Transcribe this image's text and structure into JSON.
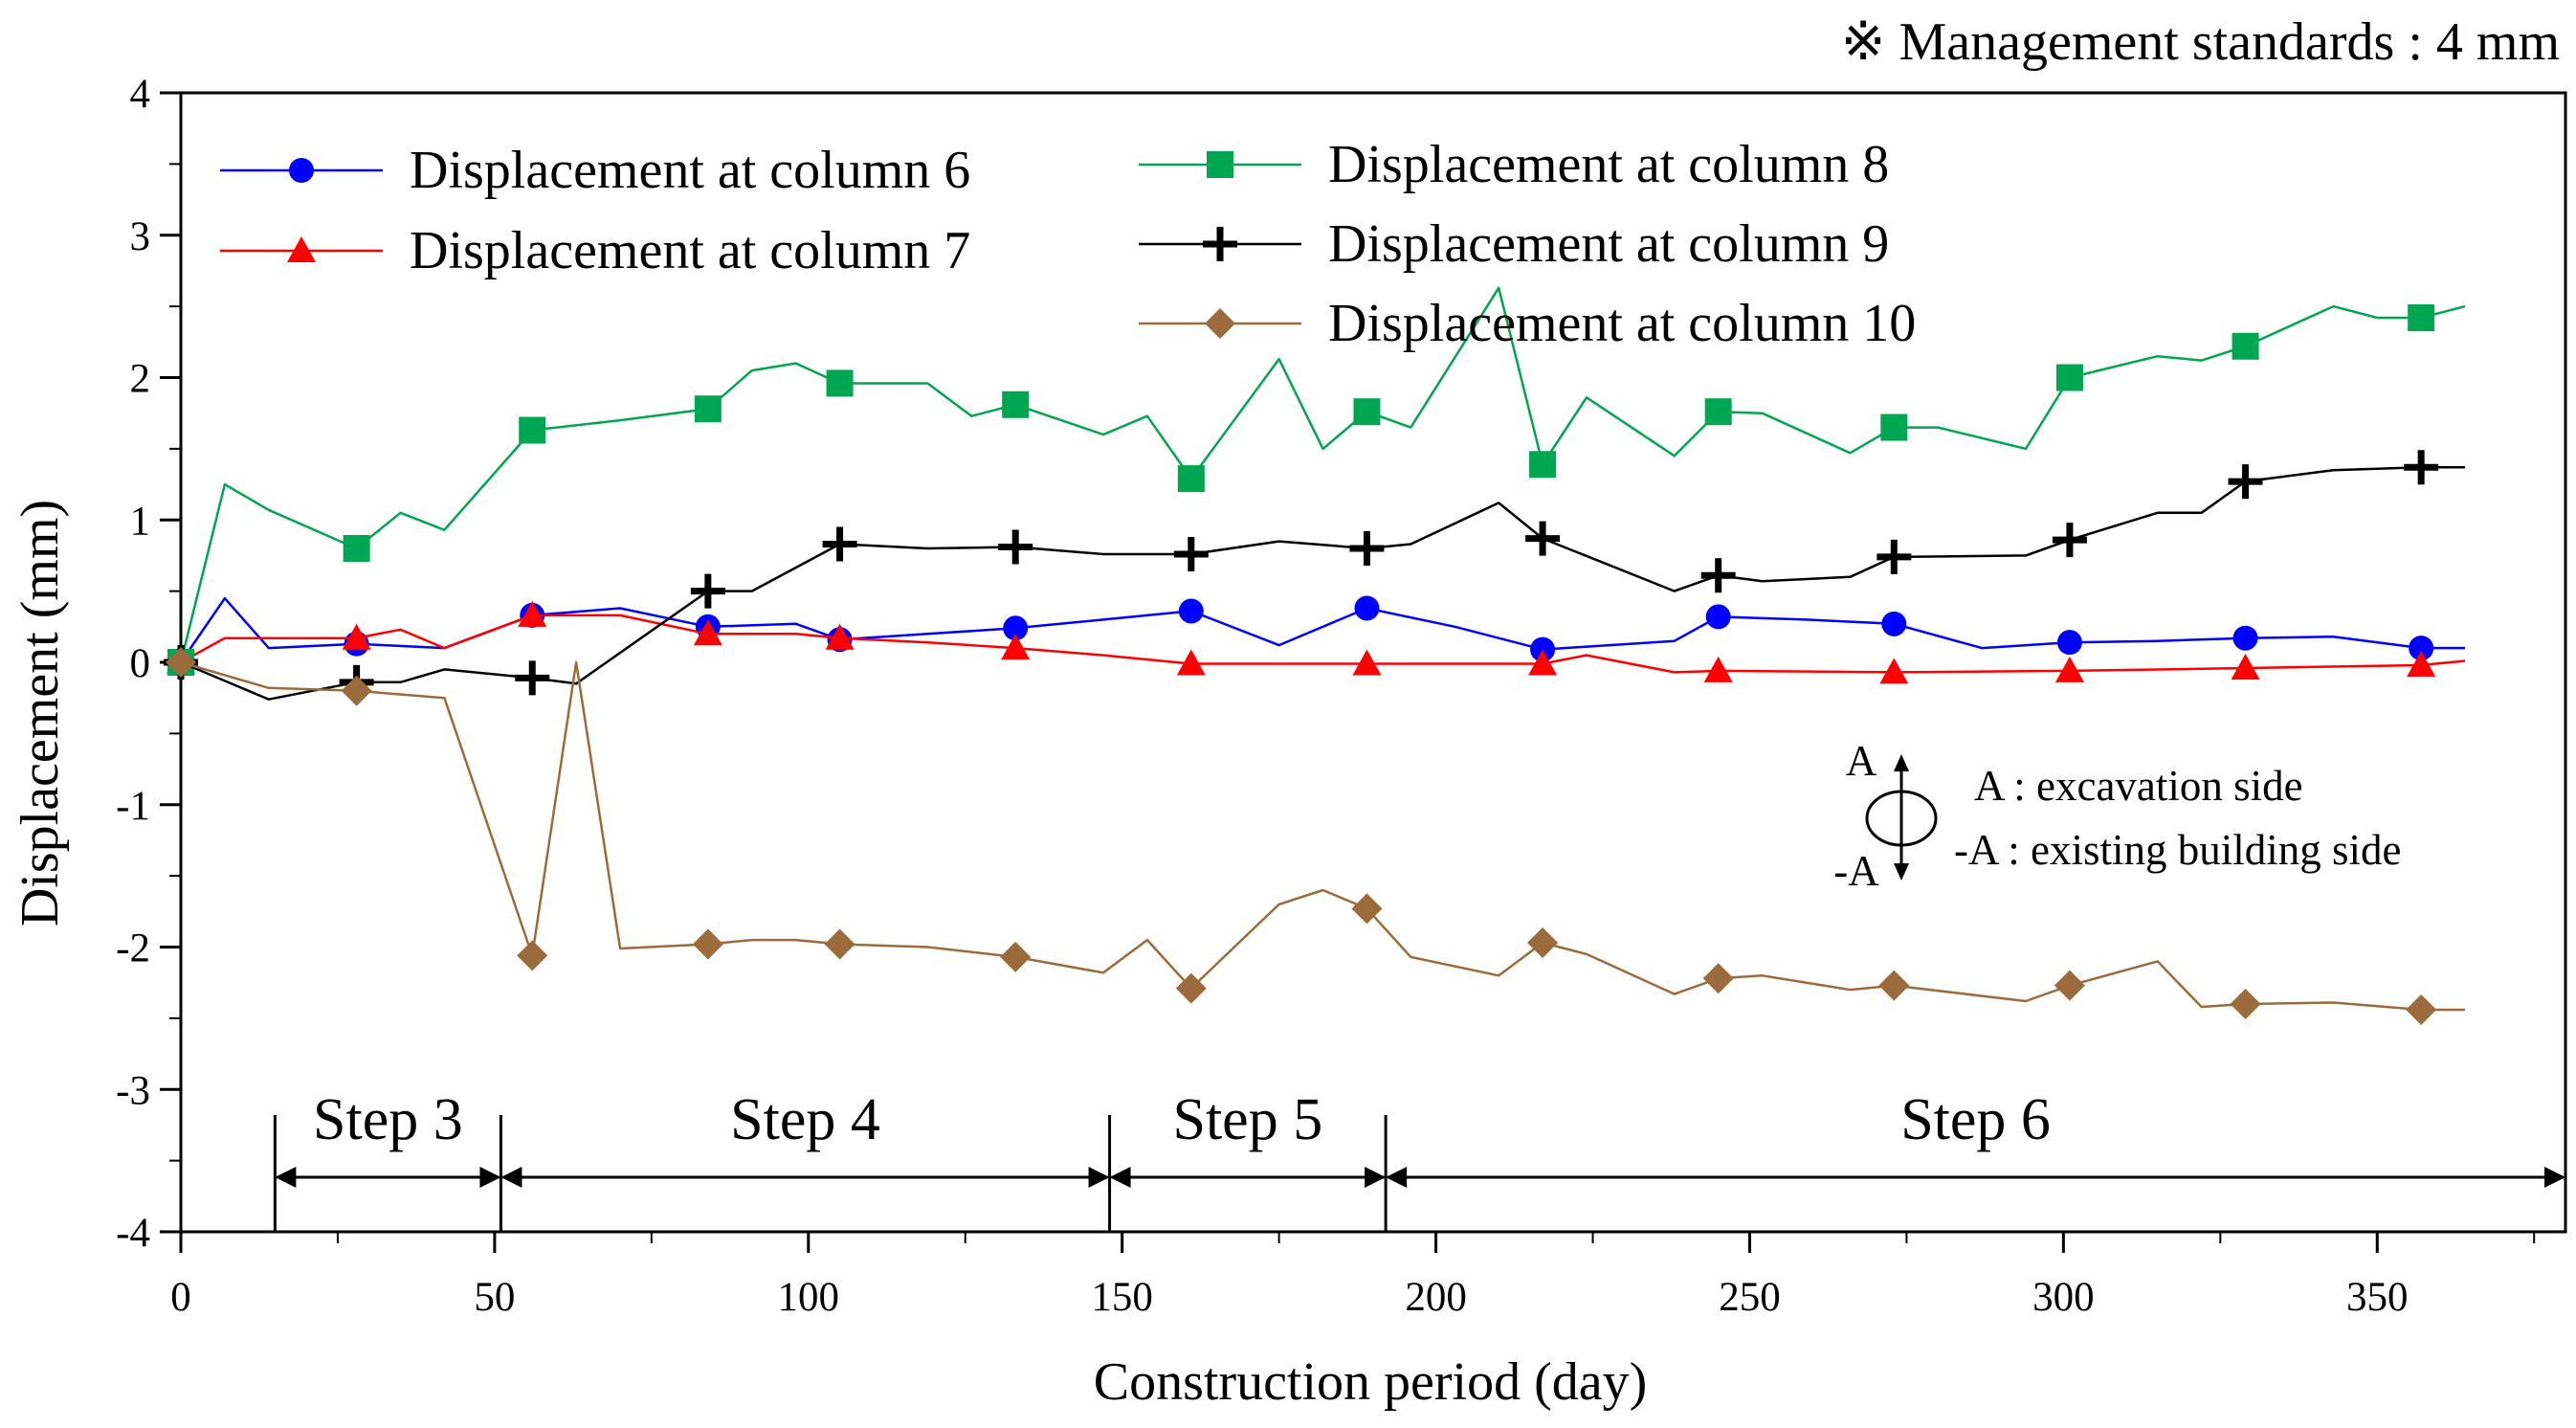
{
  "chart_data": {
    "type": "line",
    "title": "",
    "note": "※ Management standards : 4 mm",
    "xlabel": "Construction period (day)",
    "ylabel": "Displacement (mm)",
    "xlim": [
      0,
      380
    ],
    "ylim": [
      -4,
      4
    ],
    "xticks": [
      0,
      50,
      100,
      150,
      200,
      250,
      300,
      350
    ],
    "yticks": [
      -4,
      -3,
      -2,
      -1,
      0,
      1,
      2,
      3,
      4
    ],
    "grid": false,
    "legend_position": "top-left",
    "series": [
      {
        "name": "Displacement at column 6",
        "color": "#0000FF",
        "marker": "circle",
        "points": [
          [
            0,
            0
          ],
          [
            7,
            0.45
          ],
          [
            14,
            0.1
          ],
          [
            28,
            0.13
          ],
          [
            42,
            0.1
          ],
          [
            56,
            0.33
          ],
          [
            70,
            0.38
          ],
          [
            84,
            0.25
          ],
          [
            98,
            0.27
          ],
          [
            105,
            0.16
          ],
          [
            119,
            0.2
          ],
          [
            133,
            0.24
          ],
          [
            147,
            0.3
          ],
          [
            161,
            0.36
          ],
          [
            175,
            0.12
          ],
          [
            189,
            0.38
          ],
          [
            203,
            0.25
          ],
          [
            217,
            0.09
          ],
          [
            238,
            0.15
          ],
          [
            245,
            0.32
          ],
          [
            259,
            0.3
          ],
          [
            273,
            0.27
          ],
          [
            287,
            0.1
          ],
          [
            301,
            0.14
          ],
          [
            315,
            0.15
          ],
          [
            329,
            0.17
          ],
          [
            343,
            0.18
          ],
          [
            357,
            0.1
          ],
          [
            364,
            0.1
          ]
        ],
        "markers": [
          [
            0,
            0
          ],
          [
            28,
            0.13
          ],
          [
            56,
            0.33
          ],
          [
            84,
            0.25
          ],
          [
            105,
            0.16
          ],
          [
            133,
            0.24
          ],
          [
            161,
            0.36
          ],
          [
            189,
            0.38
          ],
          [
            217,
            0.09
          ],
          [
            245,
            0.32
          ],
          [
            273,
            0.27
          ],
          [
            301,
            0.14
          ],
          [
            329,
            0.17
          ],
          [
            357,
            0.1
          ]
        ]
      },
      {
        "name": "Displacement at column 7",
        "color": "#FF0000",
        "marker": "triangle",
        "points": [
          [
            0,
            0
          ],
          [
            7,
            0.17
          ],
          [
            14,
            0.17
          ],
          [
            28,
            0.17
          ],
          [
            35,
            0.23
          ],
          [
            42,
            0.1
          ],
          [
            56,
            0.33
          ],
          [
            70,
            0.33
          ],
          [
            84,
            0.2
          ],
          [
            98,
            0.2
          ],
          [
            105,
            0.17
          ],
          [
            119,
            0.14
          ],
          [
            133,
            0.1
          ],
          [
            147,
            0.05
          ],
          [
            161,
            -0.01
          ],
          [
            189,
            -0.01
          ],
          [
            217,
            -0.01
          ],
          [
            224,
            0.05
          ],
          [
            238,
            -0.07
          ],
          [
            245,
            -0.06
          ],
          [
            273,
            -0.07
          ],
          [
            301,
            -0.06
          ],
          [
            329,
            -0.04
          ],
          [
            357,
            -0.02
          ],
          [
            364,
            0.01
          ]
        ],
        "markers": [
          [
            0,
            0
          ],
          [
            28,
            0.17
          ],
          [
            56,
            0.33
          ],
          [
            84,
            0.2
          ],
          [
            105,
            0.17
          ],
          [
            133,
            0.1
          ],
          [
            161,
            -0.01
          ],
          [
            189,
            -0.01
          ],
          [
            217,
            -0.01
          ],
          [
            245,
            -0.06
          ],
          [
            273,
            -0.07
          ],
          [
            301,
            -0.06
          ],
          [
            329,
            -0.04
          ],
          [
            357,
            -0.02
          ]
        ]
      },
      {
        "name": "Displacement at column 8",
        "color": "#00A651",
        "marker": "square",
        "points": [
          [
            0,
            0
          ],
          [
            7,
            1.25
          ],
          [
            14,
            1.07
          ],
          [
            28,
            0.8
          ],
          [
            35,
            1.05
          ],
          [
            42,
            0.93
          ],
          [
            56,
            1.63
          ],
          [
            70,
            1.7
          ],
          [
            84,
            1.78
          ],
          [
            91,
            2.05
          ],
          [
            98,
            2.1
          ],
          [
            105,
            1.96
          ],
          [
            119,
            1.96
          ],
          [
            126,
            1.73
          ],
          [
            133,
            1.81
          ],
          [
            147,
            1.6
          ],
          [
            154,
            1.73
          ],
          [
            161,
            1.29
          ],
          [
            175,
            2.13
          ],
          [
            182,
            1.5
          ],
          [
            189,
            1.76
          ],
          [
            196,
            1.65
          ],
          [
            210,
            2.63
          ],
          [
            217,
            1.39
          ],
          [
            224,
            1.86
          ],
          [
            238,
            1.45
          ],
          [
            245,
            1.76
          ],
          [
            252,
            1.75
          ],
          [
            266,
            1.47
          ],
          [
            273,
            1.65
          ],
          [
            280,
            1.65
          ],
          [
            294,
            1.5
          ],
          [
            301,
            2
          ],
          [
            315,
            2.15
          ],
          [
            322,
            2.12
          ],
          [
            329,
            2.22
          ],
          [
            343,
            2.5
          ],
          [
            350,
            2.42
          ],
          [
            357,
            2.42
          ],
          [
            364,
            2.5
          ]
        ],
        "markers": [
          [
            0,
            0
          ],
          [
            28,
            0.8
          ],
          [
            56,
            1.63
          ],
          [
            84,
            1.78
          ],
          [
            105,
            1.96
          ],
          [
            133,
            1.81
          ],
          [
            161,
            1.29
          ],
          [
            189,
            1.76
          ],
          [
            217,
            1.39
          ],
          [
            245,
            1.76
          ],
          [
            273,
            1.65
          ],
          [
            301,
            2
          ],
          [
            329,
            2.22
          ],
          [
            357,
            2.42
          ]
        ]
      },
      {
        "name": "Displacement at column 9",
        "color": "#000000",
        "marker": "plus",
        "points": [
          [
            0,
            0
          ],
          [
            14,
            -0.26
          ],
          [
            28,
            -0.14
          ],
          [
            35,
            -0.14
          ],
          [
            42,
            -0.05
          ],
          [
            56,
            -0.11
          ],
          [
            63,
            -0.15
          ],
          [
            84,
            0.5
          ],
          [
            91,
            0.5
          ],
          [
            105,
            0.83
          ],
          [
            119,
            0.8
          ],
          [
            133,
            0.81
          ],
          [
            147,
            0.76
          ],
          [
            161,
            0.76
          ],
          [
            175,
            0.85
          ],
          [
            189,
            0.8
          ],
          [
            196,
            0.83
          ],
          [
            210,
            1.12
          ],
          [
            217,
            0.87
          ],
          [
            238,
            0.5
          ],
          [
            245,
            0.61
          ],
          [
            252,
            0.57
          ],
          [
            266,
            0.6
          ],
          [
            273,
            0.74
          ],
          [
            294,
            0.75
          ],
          [
            301,
            0.86
          ],
          [
            315,
            1.05
          ],
          [
            322,
            1.05
          ],
          [
            329,
            1.27
          ],
          [
            343,
            1.35
          ],
          [
            357,
            1.37
          ],
          [
            364,
            1.37
          ]
        ],
        "markers": [
          [
            0,
            0
          ],
          [
            28,
            -0.14
          ],
          [
            56,
            -0.11
          ],
          [
            84,
            0.5
          ],
          [
            105,
            0.83
          ],
          [
            133,
            0.81
          ],
          [
            161,
            0.76
          ],
          [
            189,
            0.8
          ],
          [
            217,
            0.87
          ],
          [
            245,
            0.61
          ],
          [
            273,
            0.74
          ],
          [
            301,
            0.86
          ],
          [
            329,
            1.27
          ],
          [
            357,
            1.37
          ]
        ]
      },
      {
        "name": "Displacement at column 10",
        "color": "#9C6B3C",
        "marker": "diamond",
        "points": [
          [
            0,
            0
          ],
          [
            14,
            -0.18
          ],
          [
            28,
            -0.2
          ],
          [
            42,
            -0.25
          ],
          [
            56,
            -2.06
          ],
          [
            63,
            0
          ],
          [
            70,
            -2.01
          ],
          [
            84,
            -1.98
          ],
          [
            91,
            -1.95
          ],
          [
            98,
            -1.95
          ],
          [
            105,
            -1.98
          ],
          [
            119,
            -2
          ],
          [
            133,
            -2.07
          ],
          [
            147,
            -2.18
          ],
          [
            154,
            -1.95
          ],
          [
            161,
            -2.29
          ],
          [
            175,
            -1.7
          ],
          [
            182,
            -1.6
          ],
          [
            189,
            -1.73
          ],
          [
            196,
            -2.07
          ],
          [
            210,
            -2.2
          ],
          [
            217,
            -1.97
          ],
          [
            224,
            -2.05
          ],
          [
            238,
            -2.33
          ],
          [
            245,
            -2.22
          ],
          [
            252,
            -2.2
          ],
          [
            266,
            -2.3
          ],
          [
            273,
            -2.27
          ],
          [
            294,
            -2.38
          ],
          [
            301,
            -2.27
          ],
          [
            315,
            -2.1
          ],
          [
            322,
            -2.42
          ],
          [
            329,
            -2.4
          ],
          [
            343,
            -2.39
          ],
          [
            357,
            -2.44
          ],
          [
            364,
            -2.44
          ]
        ],
        "markers": [
          [
            0,
            0
          ],
          [
            28,
            -0.2
          ],
          [
            56,
            -2.06
          ],
          [
            84,
            -1.98
          ],
          [
            105,
            -1.98
          ],
          [
            133,
            -2.07
          ],
          [
            161,
            -2.29
          ],
          [
            189,
            -1.73
          ],
          [
            217,
            -1.97
          ],
          [
            245,
            -2.22
          ],
          [
            273,
            -2.27
          ],
          [
            301,
            -2.27
          ],
          [
            329,
            -2.4
          ],
          [
            357,
            -2.44
          ]
        ]
      }
    ],
    "steps": [
      {
        "label": "Step 3",
        "start": 15,
        "end": 51
      },
      {
        "label": "Step 4",
        "start": 51,
        "end": 148
      },
      {
        "label": "Step 5",
        "start": 148,
        "end": 192
      },
      {
        "label": "Step 6",
        "start": 192,
        "end": 380
      }
    ],
    "direction_note": {
      "up_symbol": "A",
      "down_symbol": "-A",
      "lines": [
        "A : excavation side",
        "-A : existing building side"
      ]
    }
  }
}
